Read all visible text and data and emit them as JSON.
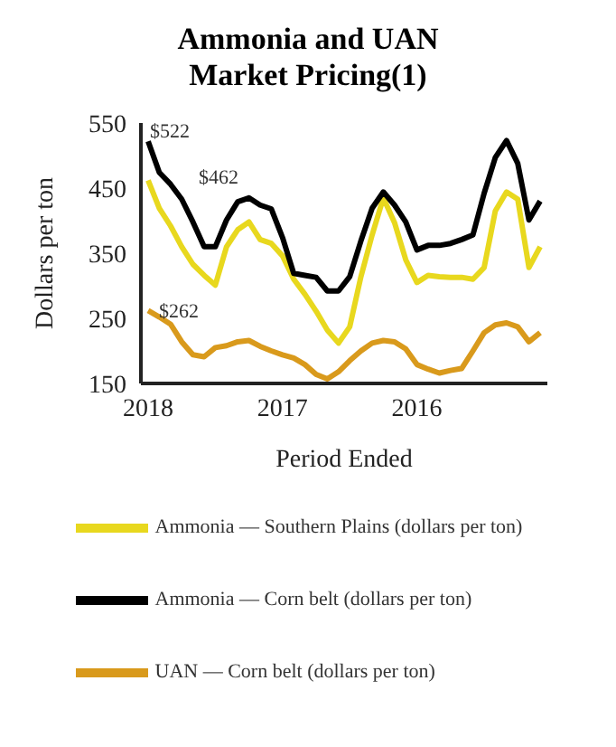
{
  "chart_data": {
    "type": "line",
    "title": "Ammonia and UAN Market Pricing(1)",
    "xlabel": "Period Ended",
    "ylabel": "Dollars per ton",
    "categories": [
      "2018",
      null,
      null,
      null,
      null,
      null,
      null,
      null,
      null,
      null,
      null,
      null,
      "2017",
      null,
      null,
      null,
      null,
      null,
      null,
      null,
      null,
      null,
      null,
      null,
      "2016",
      null,
      null,
      null,
      null,
      null,
      null,
      null,
      null,
      null,
      null,
      null
    ],
    "series": [
      {
        "name": "Ammonia — Southern Plains (dollars per ton)",
        "color": "#e8d81e",
        "values": [
          462,
          419,
          392,
          360,
          333,
          316,
          301,
          360,
          386,
          398,
          371,
          365,
          346,
          310,
          287,
          261,
          232,
          212,
          237,
          314,
          378,
          435,
          397,
          340,
          305,
          316,
          314,
          313,
          313,
          310,
          328,
          415,
          444,
          433,
          328,
          360
        ]
      },
      {
        "name": "Ammonia — Corn belt (dollars per ton)",
        "color": "#000000",
        "values": [
          522,
          474,
          456,
          433,
          398,
          360,
          360,
          401,
          429,
          435,
          424,
          418,
          374,
          319,
          316,
          313,
          292,
          292,
          314,
          369,
          419,
          444,
          424,
          398,
          355,
          362,
          362,
          365,
          371,
          378,
          442,
          497,
          523,
          488,
          401,
          430
        ]
      },
      {
        "name": "UAN — Corn belt (dollars per ton)",
        "color": "#d99a1c",
        "values": [
          262,
          252,
          241,
          214,
          194,
          191,
          205,
          208,
          214,
          216,
          207,
          200,
          194,
          189,
          179,
          164,
          157,
          168,
          185,
          200,
          212,
          216,
          214,
          203,
          179,
          172,
          166,
          170,
          173,
          200,
          228,
          240,
          243,
          237,
          214,
          228
        ]
      }
    ],
    "ylim": [
      150,
      550
    ],
    "yticks": [
      150,
      250,
      350,
      450,
      550
    ],
    "grid": false,
    "legend": "bottom",
    "annotations": [
      {
        "text": "$522",
        "x": "2018",
        "y": 522
      },
      {
        "text": "$462",
        "x": "2018",
        "y": 462
      },
      {
        "text": "$262",
        "x": "2018",
        "y": 262
      }
    ]
  }
}
